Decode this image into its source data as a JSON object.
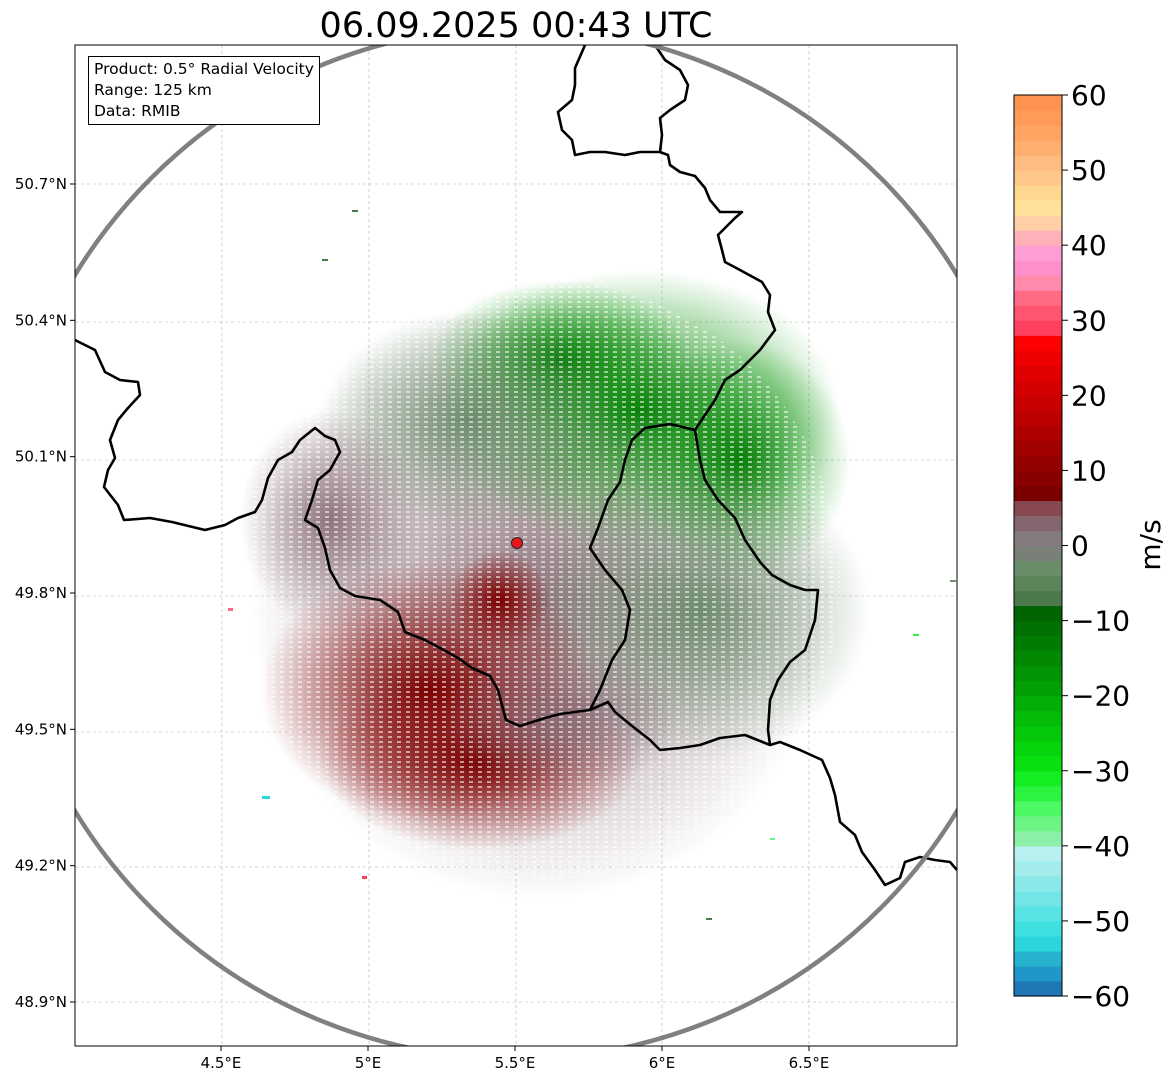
{
  "title": "06.09.2025 00:43 UTC",
  "info": {
    "product": "Product: 0.5° Radial Velocity",
    "range": "Range: 125 km",
    "data": "Data: RMIB"
  },
  "map": {
    "lon_range": [
      4.0,
      7.0
    ],
    "lat_range": [
      48.8,
      51.0
    ],
    "lon_ticks": [
      {
        "value": 4.5,
        "label": "4.5°E"
      },
      {
        "value": 5.0,
        "label": "5°E"
      },
      {
        "value": 5.5,
        "label": "5.5°E"
      },
      {
        "value": 6.0,
        "label": "6°E"
      },
      {
        "value": 6.5,
        "label": "6.5°E"
      }
    ],
    "lat_ticks": [
      {
        "value": 50.7,
        "label": "50.7°N"
      },
      {
        "value": 50.4,
        "label": "50.4°N"
      },
      {
        "value": 50.1,
        "label": "50.1°N"
      },
      {
        "value": 49.8,
        "label": "49.8°N"
      },
      {
        "value": 49.5,
        "label": "49.5°N"
      },
      {
        "value": 49.2,
        "label": "49.2°N"
      },
      {
        "value": 48.9,
        "label": "48.9°N"
      }
    ],
    "radar_site": {
      "lon": 5.505,
      "lat": 49.914
    },
    "range_km": 125,
    "gridlines": true,
    "range_ring_color": "#808080",
    "radar_marker_color": "#e8151b",
    "border_color": "#000000"
  },
  "colorbar": {
    "label": "m/s",
    "min": -60,
    "max": 60,
    "ticks": [
      {
        "value": 60,
        "label": "60"
      },
      {
        "value": 50,
        "label": "50"
      },
      {
        "value": 40,
        "label": "40"
      },
      {
        "value": 30,
        "label": "30"
      },
      {
        "value": 20,
        "label": "20"
      },
      {
        "value": 10,
        "label": "10"
      },
      {
        "value": 0,
        "label": "0"
      },
      {
        "value": -10,
        "label": "−10"
      },
      {
        "value": -20,
        "label": "−20"
      },
      {
        "value": -30,
        "label": "−30"
      },
      {
        "value": -40,
        "label": "−40"
      },
      {
        "value": -50,
        "label": "−50"
      },
      {
        "value": -60,
        "label": "−60"
      }
    ],
    "colors": [
      "#1f77b4",
      "#2197c9",
      "#26b3d0",
      "#2ad6dc",
      "#3fe0e0",
      "#58e4e4",
      "#72e6e6",
      "#8be8e8",
      "#a3ecec",
      "#b8f0f0",
      "#8cf0a8",
      "#6cf484",
      "#4cf864",
      "#2af440",
      "#12ee22",
      "#08e010",
      "#06d40c",
      "#05c80a",
      "#04bb08",
      "#03ae06",
      "#02a005",
      "#029404",
      "#028803",
      "#017c02",
      "#016f01",
      "#006400",
      "#4d7a4d",
      "#5b845b",
      "#698e69",
      "#788078",
      "#857a7f",
      "#83666e",
      "#874852",
      "#7a0000",
      "#880000",
      "#940000",
      "#a10000",
      "#ae0000",
      "#bb0000",
      "#c80000",
      "#d40000",
      "#e00000",
      "#ee0000",
      "#ff0000",
      "#ff4060",
      "#ff5570",
      "#ff6b84",
      "#ff8aac",
      "#ff8fc8",
      "#ff9ed2",
      "#ffb0b8",
      "#ffd0a8",
      "#ffe29a",
      "#ffd890",
      "#ffc88a",
      "#ffbc80",
      "#ffb070",
      "#ffa462",
      "#ff9a58",
      "#ff9450"
    ]
  }
}
